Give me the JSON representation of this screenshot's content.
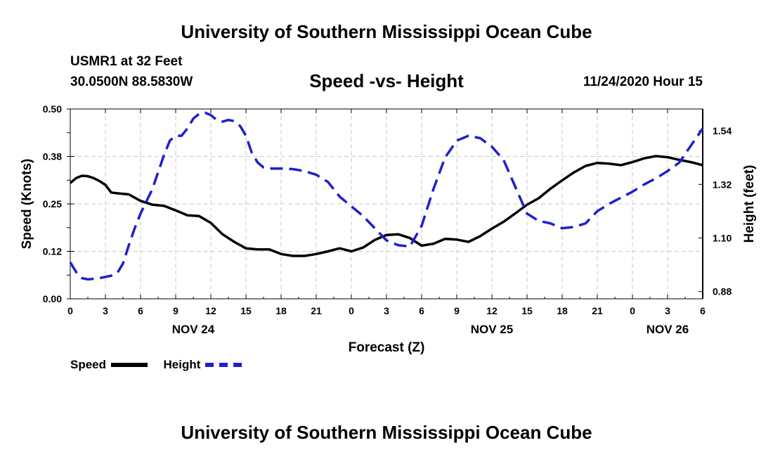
{
  "chart_data": {
    "type": "line",
    "title": "University of Southern Mississippi Ocean Cube",
    "footer_title": "University of Southern Mississippi Ocean Cube",
    "station": "USMR1 at 32 Feet",
    "location": "30.0500N 88.5830W",
    "subtitle": "Speed -vs- Height",
    "datetime": "11/24/2020 Hour 15",
    "xlabel": "Forecast (Z)",
    "ylabel_left": "Speed (Knots)",
    "ylabel_right": "Height (feet)",
    "x_range": [
      0,
      54
    ],
    "ylim_left": [
      0,
      0.5
    ],
    "ylim_right": [
      0.85,
      1.63
    ],
    "x_ticks": [
      0,
      3,
      6,
      9,
      12,
      15,
      18,
      21,
      24,
      27,
      30,
      33,
      36,
      39,
      42,
      45,
      48,
      51,
      54
    ],
    "x_tick_labels": [
      "0",
      "3",
      "6",
      "9",
      "12",
      "15",
      "18",
      "21",
      "0",
      "3",
      "6",
      "9",
      "12",
      "15",
      "18",
      "21",
      "0",
      "3",
      "6"
    ],
    "date_labels": [
      {
        "label": "NOV 24",
        "x": 10.5
      },
      {
        "label": "NOV 25",
        "x": 36
      },
      {
        "label": "NOV 26",
        "x": 51
      }
    ],
    "y_ticks_left": [
      0.0,
      0.125,
      0.25,
      0.375,
      0.5
    ],
    "y_tick_labels_left": [
      "0.00",
      "0.12",
      "0.25",
      "0.38",
      "0.50"
    ],
    "y_ticks_right": [
      0.88,
      1.1,
      1.32,
      1.54
    ],
    "y_tick_labels_right": [
      "0.88",
      "1.10",
      "1.32",
      "1.54"
    ],
    "grid": true,
    "series": [
      {
        "name": "Speed",
        "axis": "left",
        "style": "solid",
        "color": "#000000",
        "x": [
          0,
          0.5,
          1,
          1.5,
          2,
          2.5,
          3,
          3.5,
          4,
          5,
          6,
          7,
          8,
          9,
          10,
          11,
          12,
          13,
          14,
          15,
          16,
          17,
          18,
          19,
          20,
          21,
          22,
          23,
          24,
          25,
          26,
          27,
          28,
          29,
          30,
          31,
          32,
          33,
          34,
          35,
          36,
          37,
          38,
          39,
          40,
          41,
          42,
          43,
          44,
          45,
          46,
          47,
          48,
          49,
          50,
          51,
          52,
          53,
          54
        ],
        "values": [
          0.305,
          0.318,
          0.324,
          0.323,
          0.318,
          0.31,
          0.3,
          0.28,
          0.278,
          0.275,
          0.258,
          0.248,
          0.245,
          0.233,
          0.22,
          0.218,
          0.2,
          0.17,
          0.15,
          0.133,
          0.13,
          0.13,
          0.118,
          0.113,
          0.113,
          0.118,
          0.125,
          0.133,
          0.125,
          0.135,
          0.155,
          0.168,
          0.17,
          0.16,
          0.14,
          0.145,
          0.158,
          0.156,
          0.15,
          0.165,
          0.185,
          0.203,
          0.225,
          0.248,
          0.265,
          0.29,
          0.312,
          0.333,
          0.35,
          0.358,
          0.356,
          0.352,
          0.36,
          0.37,
          0.376,
          0.373,
          0.366,
          0.36,
          0.352
        ]
      },
      {
        "name": "Height",
        "axis": "right",
        "style": "dashed",
        "color": "#1f1fcc",
        "x": [
          0,
          0.5,
          1,
          1.5,
          2,
          2.5,
          3,
          3.5,
          4,
          4.5,
          5,
          5.5,
          6,
          6.5,
          7,
          7.5,
          8,
          8.5,
          9,
          9.5,
          10,
          10.5,
          11,
          11.5,
          12,
          12.5,
          13,
          13.5,
          14,
          14.5,
          15,
          15.5,
          16,
          16.5,
          17,
          18,
          19,
          20,
          21,
          22,
          23,
          24,
          25,
          26,
          27,
          28,
          29,
          30,
          31,
          32,
          33,
          34,
          35,
          36,
          37,
          38,
          39,
          40,
          41,
          42,
          43,
          44,
          45,
          46,
          47,
          48,
          49,
          50,
          51,
          52,
          53,
          54
        ],
        "values": [
          1.0,
          0.96,
          0.935,
          0.93,
          0.932,
          0.935,
          0.94,
          0.945,
          0.955,
          0.995,
          1.07,
          1.14,
          1.2,
          1.25,
          1.3,
          1.37,
          1.44,
          1.5,
          1.52,
          1.52,
          1.55,
          1.59,
          1.61,
          1.615,
          1.605,
          1.585,
          1.578,
          1.585,
          1.58,
          1.56,
          1.52,
          1.45,
          1.41,
          1.39,
          1.385,
          1.385,
          1.383,
          1.375,
          1.36,
          1.33,
          1.27,
          1.23,
          1.19,
          1.14,
          1.09,
          1.07,
          1.065,
          1.15,
          1.3,
          1.43,
          1.5,
          1.52,
          1.51,
          1.475,
          1.42,
          1.31,
          1.2,
          1.17,
          1.16,
          1.14,
          1.145,
          1.16,
          1.21,
          1.24,
          1.265,
          1.29,
          1.32,
          1.345,
          1.375,
          1.41,
          1.48,
          1.55
        ]
      }
    ]
  }
}
